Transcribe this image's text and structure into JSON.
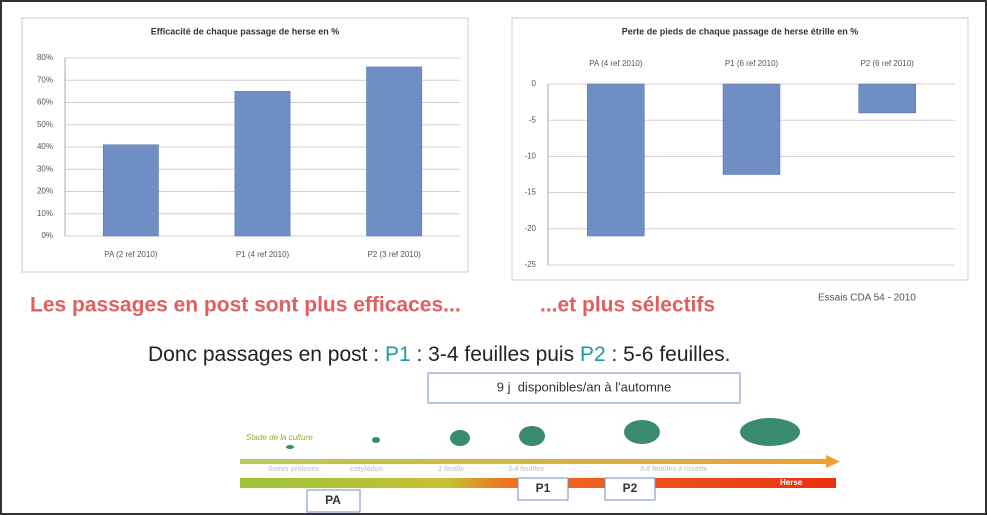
{
  "chart_data": [
    {
      "type": "bar",
      "title": "Efficacité de chaque passage de herse en %",
      "categories": [
        "PA (2 ref 2010)",
        "P1 (4 ref 2010)",
        "P2 (3 ref 2010)"
      ],
      "values": [
        41,
        65,
        76
      ],
      "color": "#6f8fc4",
      "ylim": [
        0,
        80
      ],
      "yticks": [
        {
          "value": 0,
          "label": "0%"
        },
        {
          "value": 10,
          "label": "10%"
        },
        {
          "value": 20,
          "label": "20%"
        },
        {
          "value": 30,
          "label": "30%"
        },
        {
          "value": 40,
          "label": "40%"
        },
        {
          "value": 50,
          "label": "50%"
        },
        {
          "value": 60,
          "label": "60%"
        },
        {
          "value": 70,
          "label": "70%"
        },
        {
          "value": 80,
          "label": "80%"
        }
      ],
      "grid": true
    },
    {
      "type": "bar",
      "title": "Perte de pieds de chaque passage de herse étrille en %",
      "categories": [
        "PA (4 ref 2010)",
        "P1 (6 ref 2010)",
        "P2 (6 ref 2010)"
      ],
      "values": [
        -21,
        -12.5,
        -4
      ],
      "color": "#6f8fc4",
      "ylim": [
        -25,
        0
      ],
      "yticks": [
        0,
        -5,
        -10,
        -15,
        -20,
        -25
      ],
      "grid": true
    }
  ],
  "conclusion": {
    "left": "Les passages en post sont plus efficaces...",
    "right": "...et plus sélectifs",
    "source": "Essais CDA 54 - 2010"
  },
  "summary": {
    "parts": [
      "Donc passages en post : ",
      "P1",
      " : 3-4 feuilles puis ",
      "P2",
      " : 5-6 feuilles."
    ]
  },
  "diagram": {
    "window": "9 j  disponibles/an à l'automne",
    "stage_title": "Stade de la culture",
    "stages": [
      "Semis prélevée",
      "cotylédon",
      "1 feuille",
      "3-4 feuilles",
      "5-8 feuilles à rosette"
    ],
    "tool": "Herse",
    "passes": [
      "PA",
      "P1",
      "P2"
    ]
  }
}
